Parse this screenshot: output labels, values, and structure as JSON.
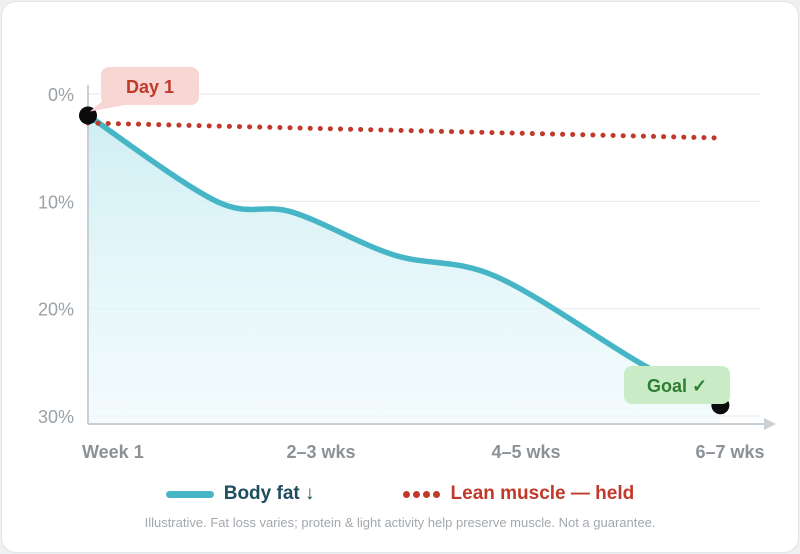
{
  "chart_data": {
    "type": "area",
    "y_axis": {
      "ticks": [
        "0%",
        "10%",
        "20%",
        "30%"
      ],
      "tick_values": [
        0,
        10,
        20,
        30
      ],
      "ylim": [
        0,
        30
      ],
      "inverted": true
    },
    "x_axis": {
      "categories": [
        "Week 1",
        "2–3 wks",
        "4–5 wks",
        "6–7 wks"
      ]
    },
    "series": [
      {
        "name": "Body fat ↓",
        "style": "solid line with area fill",
        "color": "#46b6c6",
        "x": [
          0,
          0.63,
          1.0,
          1.5,
          2.0,
          2.7,
          3.1
        ],
        "values": [
          2,
          10,
          11,
          15,
          17,
          25,
          29
        ]
      },
      {
        "name": "Lean muscle — held",
        "style": "dotted",
        "color": "#c0392b",
        "x": [
          0,
          3.1
        ],
        "values": [
          2.7,
          4.1
        ]
      }
    ],
    "markers": [
      {
        "label": "Day 1",
        "x": 0,
        "value": 2,
        "badge_bg": "#f8d6d3",
        "badge_text_color": "#c0392b"
      },
      {
        "label": "Goal ✓",
        "x": 3.1,
        "value": 29,
        "badge_bg": "#c9ecc6",
        "badge_text_color": "#2e7d32"
      }
    ],
    "grid": "horizontal",
    "legend_position": "bottom"
  },
  "legend": [
    {
      "label": "Body fat ↓",
      "color": "#46b6c6",
      "text_color": "#1f4e5f",
      "style": "solid"
    },
    {
      "label": "Lean muscle — held",
      "color": "#c0392b",
      "text_color": "#c0392b",
      "style": "dotted"
    }
  ],
  "footnote": "Illustrative. Fat loss varies; protein & light activity help preserve muscle. Not a guarantee."
}
